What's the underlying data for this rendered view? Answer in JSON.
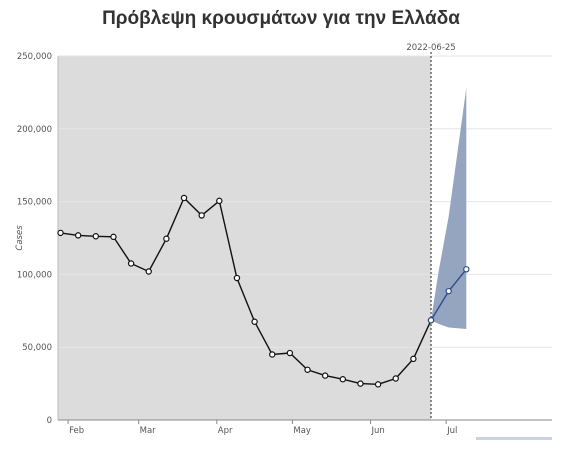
{
  "chart_data": {
    "type": "line",
    "title": "Πρόβλεψη κρουσμάτων για την Ελλάδα",
    "ylabel": "Cases",
    "xlabel": "",
    "ylim": [
      0,
      250000
    ],
    "x_date_range": [
      "2022-01-28",
      "2022-08-12"
    ],
    "y_ticks": [
      0,
      50000,
      100000,
      150000,
      200000,
      250000
    ],
    "y_tick_labels": [
      "0",
      "50,000",
      "100,000",
      "150,000",
      "200,000",
      "250,000"
    ],
    "x_ticks": [
      {
        "date": "2022-02-01",
        "label": "Feb"
      },
      {
        "date": "2022-03-01",
        "label": "Mar"
      },
      {
        "date": "2022-04-01",
        "label": "Apr"
      },
      {
        "date": "2022-05-01",
        "label": "May"
      },
      {
        "date": "2022-06-01",
        "label": "Jun"
      },
      {
        "date": "2022-07-01",
        "label": "Jul"
      }
    ],
    "grid": true,
    "shaded_region": {
      "start": "2022-01-28",
      "end": "2022-06-25",
      "color": "#dcdcdc"
    },
    "marker_line": {
      "date": "2022-06-25",
      "label": "2022-06-25"
    },
    "series": [
      {
        "role": "observed",
        "color": "#111111",
        "points": [
          {
            "x": "2022-01-29",
            "y": 128500
          },
          {
            "x": "2022-02-05",
            "y": 126800
          },
          {
            "x": "2022-02-12",
            "y": 126200
          },
          {
            "x": "2022-02-19",
            "y": 125800
          },
          {
            "x": "2022-02-26",
            "y": 107500
          },
          {
            "x": "2022-03-05",
            "y": 102000
          },
          {
            "x": "2022-03-12",
            "y": 124500
          },
          {
            "x": "2022-03-19",
            "y": 152500
          },
          {
            "x": "2022-03-26",
            "y": 140500
          },
          {
            "x": "2022-04-02",
            "y": 150500
          },
          {
            "x": "2022-04-09",
            "y": 97500
          },
          {
            "x": "2022-04-16",
            "y": 67500
          },
          {
            "x": "2022-04-23",
            "y": 45000
          },
          {
            "x": "2022-04-30",
            "y": 46000
          },
          {
            "x": "2022-05-07",
            "y": 34500
          },
          {
            "x": "2022-05-14",
            "y": 30500
          },
          {
            "x": "2022-05-21",
            "y": 28000
          },
          {
            "x": "2022-05-28",
            "y": 25000
          },
          {
            "x": "2022-06-04",
            "y": 24500
          },
          {
            "x": "2022-06-11",
            "y": 28500
          },
          {
            "x": "2022-06-18",
            "y": 42000
          },
          {
            "x": "2022-06-25",
            "y": 68500
          }
        ]
      },
      {
        "role": "forecast",
        "color": "#2b4c8c",
        "points": [
          {
            "x": "2022-06-25",
            "y": 68500
          },
          {
            "x": "2022-07-02",
            "y": 88500
          },
          {
            "x": "2022-07-09",
            "y": 103500
          }
        ]
      }
    ],
    "forecast_interval": {
      "color": "#8a9bb8",
      "points": [
        {
          "x": "2022-06-25",
          "lower": 68500,
          "upper": 68500
        },
        {
          "x": "2022-06-28",
          "lower": 66000,
          "upper": 102000
        },
        {
          "x": "2022-07-02",
          "lower": 63500,
          "upper": 140000
        },
        {
          "x": "2022-07-09",
          "lower": 62500,
          "upper": 228000
        }
      ]
    }
  }
}
